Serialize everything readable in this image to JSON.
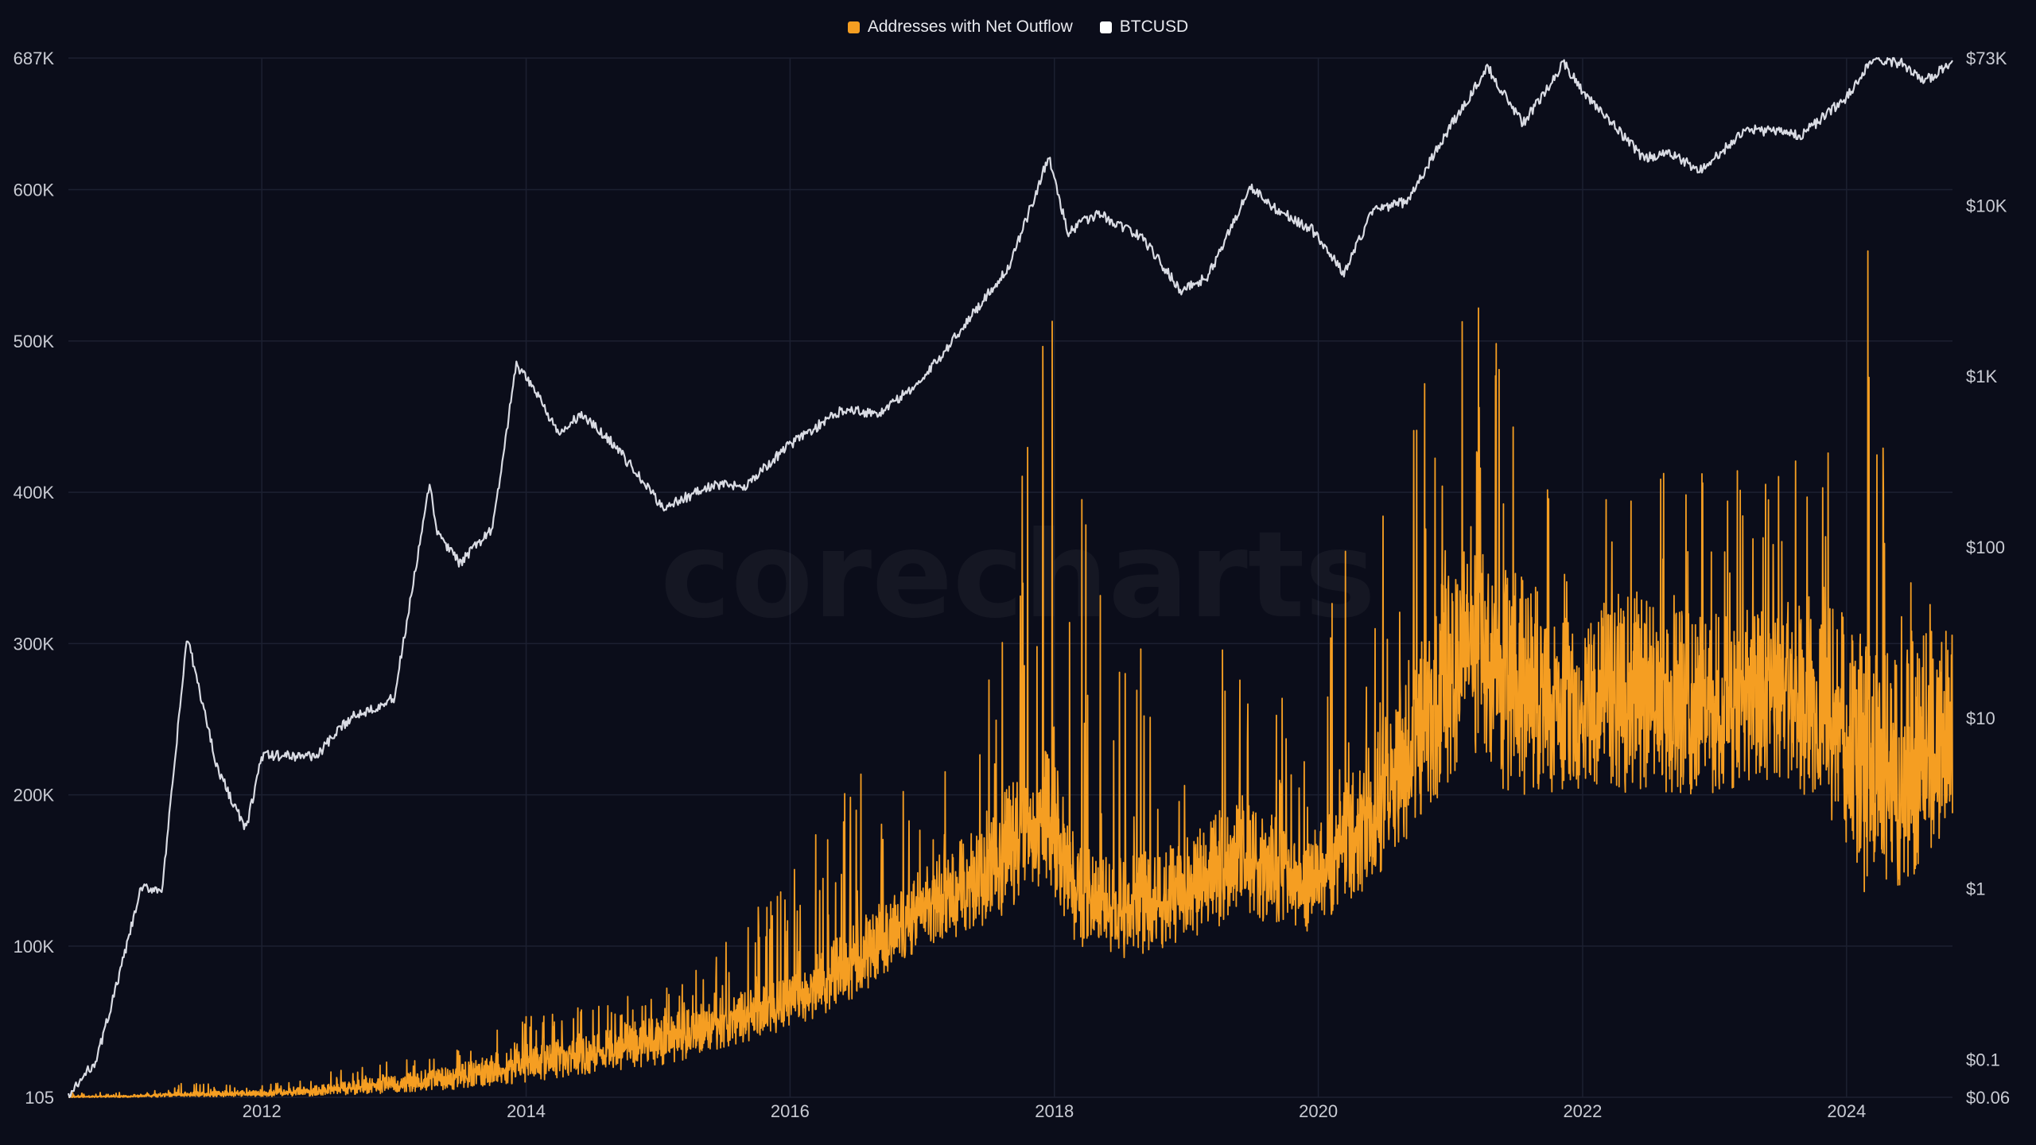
{
  "chart_data": {
    "type": "line",
    "watermark": "corecharts",
    "legend": {
      "placement": "top-center"
    },
    "grid": true,
    "x_axis": {
      "range": [
        "2010-07-15",
        "2024-10-20"
      ],
      "ticks": [
        "2012",
        "2014",
        "2016",
        "2018",
        "2020",
        "2022",
        "2024"
      ]
    },
    "y_left": {
      "range": [
        105,
        687000
      ],
      "ticks": [
        105,
        100000,
        200000,
        300000,
        400000,
        500000,
        600000,
        687000
      ],
      "tick_labels": [
        "105",
        "100K",
        "200K",
        "300K",
        "400K",
        "500K",
        "600K",
        "687K"
      ]
    },
    "y_right": {
      "scale": "log",
      "range": [
        0.06,
        73000
      ],
      "ticks": [
        0.06,
        0.1,
        1,
        10,
        100,
        1000,
        10000,
        73000
      ],
      "tick_labels": [
        "$0.06",
        "$0.1",
        "$1",
        "$10",
        "$100",
        "$1K",
        "$10K",
        "$73K"
      ]
    },
    "series": [
      {
        "name": "Addresses with Net Outflow",
        "axis": "left",
        "color": "#f59e22",
        "style": "noisy-daily-line",
        "x": [
          "2010-07-15",
          "2011-01-01",
          "2011-06-01",
          "2012-01-01",
          "2012-06-01",
          "2013-01-01",
          "2013-06-01",
          "2014-01-01",
          "2014-06-01",
          "2015-01-01",
          "2015-06-01",
          "2016-01-01",
          "2016-06-01",
          "2017-01-01",
          "2017-06-01",
          "2017-12-15",
          "2018-03-01",
          "2018-06-01",
          "2018-12-15",
          "2019-06-01",
          "2019-12-01",
          "2020-06-01",
          "2020-12-01",
          "2021-03-01",
          "2021-06-01",
          "2021-12-01",
          "2022-06-01",
          "2022-12-01",
          "2023-06-01",
          "2023-12-01",
          "2024-03-01",
          "2024-06-01",
          "2024-10-20"
        ],
        "mid": [
          500,
          1000,
          2500,
          3000,
          5000,
          10000,
          14000,
          25000,
          30000,
          40000,
          50000,
          65000,
          90000,
          130000,
          150000,
          200000,
          140000,
          130000,
          140000,
          170000,
          145000,
          200000,
          280000,
          320000,
          290000,
          270000,
          280000,
          270000,
          280000,
          270000,
          230000,
          230000,
          260000
        ],
        "low": [
          0,
          0,
          500,
          500,
          1000,
          3000,
          5000,
          10000,
          15000,
          20000,
          30000,
          45000,
          60000,
          100000,
          110000,
          140000,
          100000,
          90000,
          100000,
          120000,
          110000,
          140000,
          200000,
          230000,
          200000,
          200000,
          200000,
          200000,
          210000,
          180000,
          130000,
          140000,
          170000
        ],
        "high": [
          3000,
          5000,
          10000,
          8000,
          15000,
          28000,
          30000,
          55000,
          60000,
          75000,
          95000,
          150000,
          250000,
          210000,
          230000,
          520000,
          500000,
          290000,
          320000,
          330000,
          270000,
          450000,
          500000,
          560000,
          480000,
          390000,
          400000,
          440000,
          410000,
          500000,
          570000,
          350000,
          320000
        ]
      },
      {
        "name": "BTCUSD",
        "axis": "right",
        "color": "#d9dbe3",
        "x": [
          "2010-07-15",
          "2010-10-01",
          "2010-12-01",
          "2011-02-01",
          "2011-04-01",
          "2011-06-08",
          "2011-09-01",
          "2011-11-18",
          "2012-01-01",
          "2012-06-01",
          "2012-09-01",
          "2013-01-01",
          "2013-04-09",
          "2013-05-01",
          "2013-07-01",
          "2013-10-01",
          "2013-12-04",
          "2014-02-01",
          "2014-04-01",
          "2014-06-01",
          "2014-09-01",
          "2015-01-14",
          "2015-06-01",
          "2015-09-01",
          "2016-01-01",
          "2016-06-01",
          "2016-09-01",
          "2017-01-01",
          "2017-06-01",
          "2017-09-01",
          "2017-12-17",
          "2018-02-06",
          "2018-05-01",
          "2018-09-01",
          "2018-12-15",
          "2019-03-01",
          "2019-06-26",
          "2019-09-01",
          "2019-12-15",
          "2020-03-12",
          "2020-06-01",
          "2020-09-01",
          "2020-12-31",
          "2021-04-14",
          "2021-07-20",
          "2021-11-10",
          "2022-01-01",
          "2022-06-18",
          "2022-09-01",
          "2022-11-21",
          "2023-04-01",
          "2023-09-01",
          "2024-01-01",
          "2024-03-14",
          "2024-06-01",
          "2024-08-05",
          "2024-10-20"
        ],
        "y": [
          0.06,
          0.1,
          0.3,
          1,
          1,
          30,
          5,
          2.2,
          6,
          6,
          10,
          13,
          230,
          120,
          80,
          130,
          1150,
          800,
          450,
          600,
          400,
          170,
          230,
          230,
          400,
          650,
          600,
          950,
          2500,
          4500,
          19500,
          7000,
          9000,
          6500,
          3200,
          3800,
          12900,
          9700,
          7200,
          4000,
          9500,
          10500,
          29000,
          64000,
          30000,
          68000,
          47000,
          19000,
          20000,
          16000,
          28000,
          26000,
          43000,
          73000,
          68000,
          54000,
          68000
        ]
      }
    ]
  }
}
